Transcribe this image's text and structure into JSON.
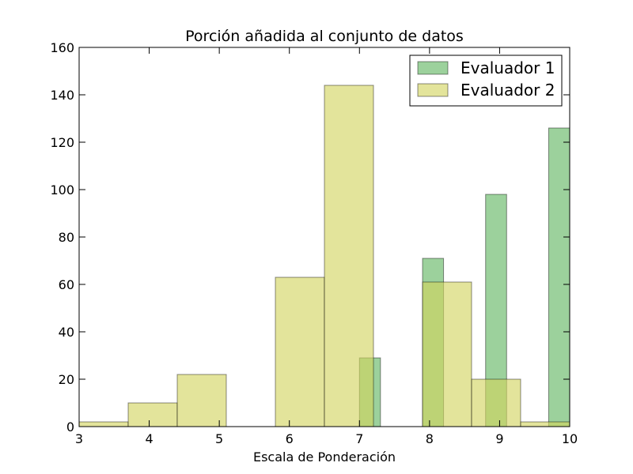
{
  "chart_data": {
    "type": "bar",
    "title": "Porción añadida al conjunto de datos",
    "xlabel": "Escala de Ponderación",
    "ylabel": "",
    "xlim": [
      3,
      10
    ],
    "ylim": [
      0,
      160
    ],
    "xticks": [
      3,
      4,
      5,
      6,
      7,
      8,
      9,
      10
    ],
    "yticks": [
      0,
      20,
      40,
      60,
      80,
      100,
      120,
      140,
      160
    ],
    "grid": false,
    "legend_position": "top-right",
    "series": [
      {
        "name": "Evaluador 1",
        "color": "#5fb45f",
        "bars": [
          {
            "x0": 7.0,
            "x1": 7.3,
            "value": 29
          },
          {
            "x0": 7.9,
            "x1": 8.2,
            "value": 71
          },
          {
            "x0": 8.8,
            "x1": 9.1,
            "value": 98
          },
          {
            "x0": 9.7,
            "x1": 10.0,
            "value": 126
          }
        ]
      },
      {
        "name": "Evaluador 2",
        "color": "#d2d45e",
        "bars": [
          {
            "x0": 3.0,
            "x1": 3.7,
            "value": 2
          },
          {
            "x0": 3.7,
            "x1": 4.4,
            "value": 10
          },
          {
            "x0": 4.4,
            "x1": 5.1,
            "value": 22
          },
          {
            "x0": 5.1,
            "x1": 5.8,
            "value": 0
          },
          {
            "x0": 5.8,
            "x1": 6.5,
            "value": 63
          },
          {
            "x0": 6.5,
            "x1": 7.2,
            "value": 144
          },
          {
            "x0": 7.2,
            "x1": 7.9,
            "value": 0
          },
          {
            "x0": 7.9,
            "x1": 8.6,
            "value": 61
          },
          {
            "x0": 8.6,
            "x1": 9.3,
            "value": 20
          },
          {
            "x0": 9.3,
            "x1": 10.0,
            "value": 2
          }
        ]
      }
    ]
  }
}
